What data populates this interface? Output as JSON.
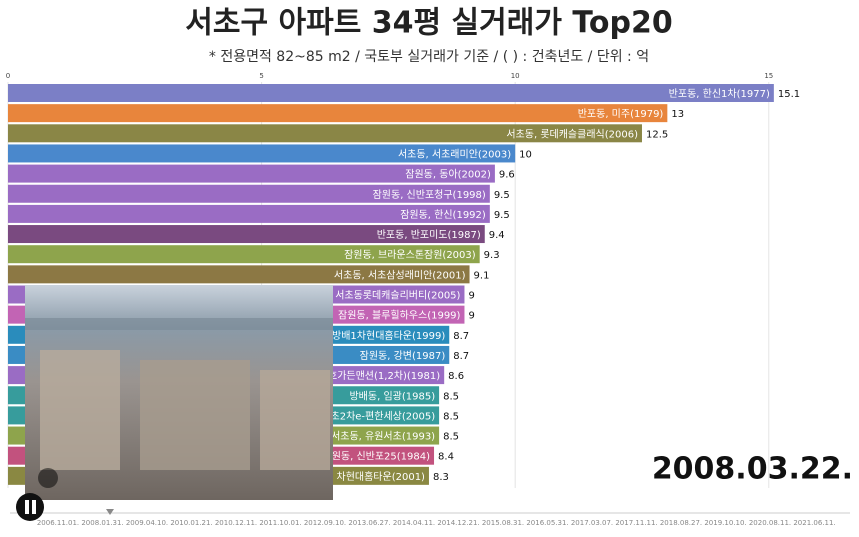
{
  "chart_data": {
    "type": "barh",
    "title": "서초구 아파트 34평 실거래가 Top20",
    "subtitle": "* 전용면적 82~85 m2 / 국토부 실거래가 기준 / ( ) : 건축년도 / 단위 : 억",
    "categories": [
      "반포동, 한신1차(1977)",
      "반포동, 미주(1979)",
      "서초동, 롯데캐슬클래식(2006)",
      "서초동, 서초래미안(2003)",
      "잠원동, 동아(2002)",
      "잠원동, 신반포청구(1998)",
      "잠원동, 한신(1992)",
      "반포동, 반포미도(1987)",
      "잠원동, 브라운스톤잠원(2003)",
      "서초동, 서초삼성래미안(2001)",
      "서초동롯데캐슬리버티(2005)",
      "잠원동, 블루힐하우스(1999)",
      "방배1차현대홈타운(1999)",
      "잠원동, 강변(1987)",
      "호가든맨션(1,2차)(1981)",
      "방배동, 임광(1985)",
      "초2차e-편한세상(2005)",
      "서초동, 유원서초(1993)",
      "원동, 신반포25(1984)",
      "차현대홈타운(2001)"
    ],
    "values": [
      15.1,
      13,
      12.5,
      10,
      9.6,
      9.5,
      9.5,
      9.4,
      9.3,
      9.1,
      9,
      9,
      8.7,
      8.7,
      8.6,
      8.5,
      8.5,
      8.5,
      8.4,
      8.3
    ],
    "colors": [
      "#7b7fc6",
      "#e8853c",
      "#8a8646",
      "#4a88cc",
      "#9a6cc4",
      "#9a6cc4",
      "#9a6cc4",
      "#7a4a80",
      "#8ea44c",
      "#8c7844",
      "#9a6cc4",
      "#c264b4",
      "#2a8cbc",
      "#3a8cc4",
      "#9a6cc4",
      "#379c9c",
      "#379c9c",
      "#8ea44c",
      "#c2527e",
      "#8a8842"
    ],
    "xlim": [
      0,
      16.7
    ],
    "xticks": [
      0,
      5,
      10,
      15
    ],
    "grid": true,
    "current_date": "2008.03.22.",
    "timeline": [
      "2006.11.01.",
      "2008.01.31.",
      "2009.04.10.",
      "2010.01.21.",
      "2010.12.11.",
      "2011.10.01.",
      "2012.09.10.",
      "2013.06.27.",
      "2014.04.11.",
      "2014.12.21.",
      "2015.08.31.",
      "2016.05.31.",
      "2017.03.07.",
      "2017.11.11.",
      "2018.08.27.",
      "2019.10.10.",
      "2020.08.11.",
      "2021.06.11."
    ]
  }
}
